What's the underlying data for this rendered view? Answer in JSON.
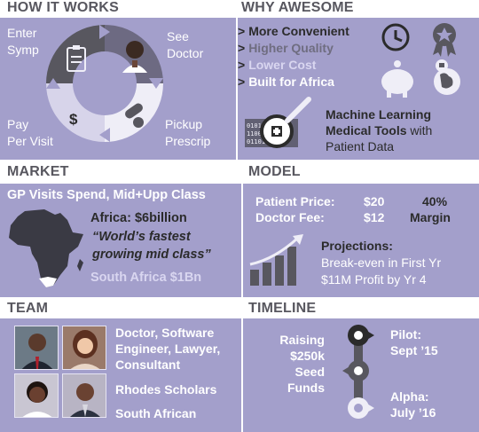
{
  "how": {
    "header": "HOW IT WORKS",
    "steps": [
      {
        "line1": "Enter",
        "line2": "Symp"
      },
      {
        "line1": "See",
        "line2": "Doctor"
      },
      {
        "line1": "Pickup",
        "line2": "Prescrip"
      },
      {
        "line1": "Pay",
        "line2": "Per Visit"
      }
    ],
    "dollar_symbol": "$",
    "icons": [
      "clipboard-icon",
      "doctor-icon",
      "pills-icon",
      "dollar-icon"
    ]
  },
  "why": {
    "header": "WHY AWESOME",
    "chevron": ">",
    "items": [
      {
        "label": "More Convenient",
        "color": "#2b2b2b"
      },
      {
        "label": "Higher Quality",
        "color": "#6f6d80"
      },
      {
        "label": "Lower Cost",
        "color": "#d9d6f0"
      },
      {
        "label": "Built for Africa",
        "color": "#ffffff"
      }
    ],
    "ml_line1": "Machine Learning",
    "ml_line2": "Medical Tools",
    "ml_line2_rest": " with",
    "ml_line3": "Patient Data",
    "icons": [
      "clock-icon",
      "award-ribbon-icon",
      "piggy-bank-icon",
      "globe-icon",
      "magnifier-data-icon"
    ]
  },
  "market": {
    "header": "MARKET",
    "title": "GP Visits Spend, Mid+Upp Class",
    "africa_label": "Africa: $6billion",
    "quote_line1": "“World’s fastest",
    "quote_line2": "growing mid class”",
    "sa_label": "South Africa $1Bn",
    "icons": [
      "africa-map-icon"
    ]
  },
  "model": {
    "header": "MODEL",
    "patient_label": "Patient Price:",
    "patient_value": "$20",
    "doctor_label": "Doctor Fee:",
    "doctor_value": "$12",
    "margin_value": "40%",
    "margin_label": "Margin",
    "projections_title": "Projections:",
    "projection_1": "Break-even in First Yr",
    "projection_2": "$11M Profit by Yr 4",
    "icons": [
      "growth-chart-icon"
    ]
  },
  "team": {
    "header": "TEAM",
    "roles_line1": "Doctor, Software",
    "roles_line2": "Engineer, Lawyer,",
    "roles_line3": "Consultant",
    "scholars": "Rhodes Scholars",
    "origin": "South African"
  },
  "timeline": {
    "header": "TIMELINE",
    "raising_1": "Raising",
    "raising_2": "$250k",
    "raising_3": "Seed",
    "raising_4": "Funds",
    "pilot_label": "Pilot:",
    "pilot_date": "Sept ’15",
    "alpha_label": "Alpha:",
    "alpha_date": "July ’16"
  },
  "colors": {
    "panel": "#a39fcb",
    "header_text": "#58575f",
    "dark": "#2b2b2b",
    "light_accent": "#d9d6f0"
  }
}
